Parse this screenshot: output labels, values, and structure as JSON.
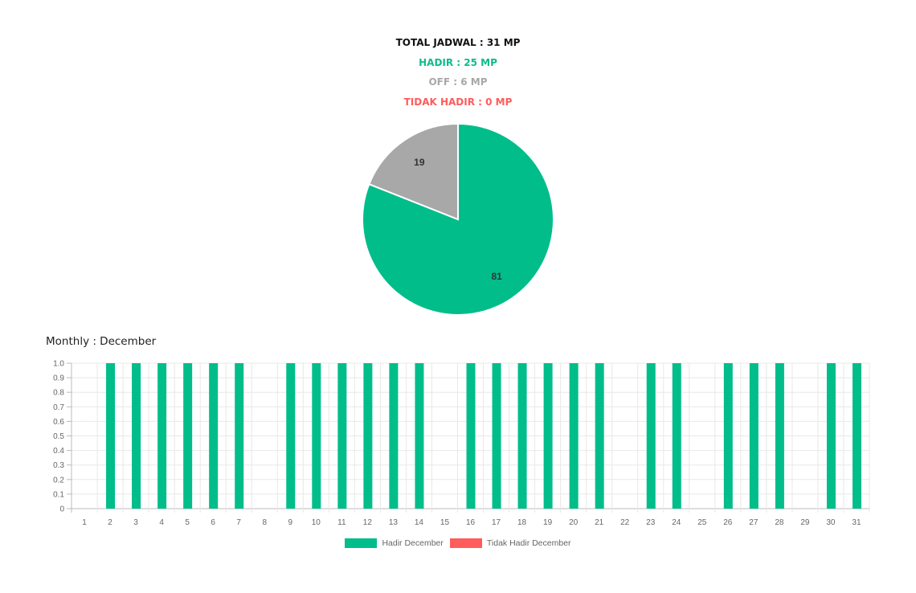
{
  "summary": {
    "total": "TOTAL JADWAL : 31 MP",
    "hadir": "HADIR : 25 MP",
    "off": "OFF : 6 MP",
    "tidak_hadir": "TIDAK HADIR : 0 MP"
  },
  "colors": {
    "total": "#111111",
    "hadir": "#0dbb8b",
    "off": "#a8a8a8",
    "tidak_hadir": "#ff5c5c"
  },
  "monthly_title": "Monthly : December",
  "chart_data": [
    {
      "type": "pie",
      "slices": [
        {
          "label": "81",
          "value": 81,
          "color": "#00bd8a"
        },
        {
          "label": "19",
          "value": 19,
          "color": "#a8a8a8"
        }
      ],
      "start": "12 o'clock",
      "direction": "clockwise"
    },
    {
      "type": "bar",
      "categories": [
        "1",
        "2",
        "3",
        "4",
        "5",
        "6",
        "7",
        "8",
        "9",
        "10",
        "11",
        "12",
        "13",
        "14",
        "15",
        "16",
        "17",
        "18",
        "19",
        "20",
        "21",
        "22",
        "23",
        "24",
        "25",
        "26",
        "27",
        "28",
        "29",
        "30",
        "31"
      ],
      "series": [
        {
          "name": "Hadir December",
          "color": "#00bd8a",
          "values": [
            0,
            1,
            1,
            1,
            1,
            1,
            1,
            0,
            1,
            1,
            1,
            1,
            1,
            1,
            0,
            1,
            1,
            1,
            1,
            1,
            1,
            0,
            1,
            1,
            0,
            1,
            1,
            1,
            0,
            1,
            1
          ]
        },
        {
          "name": "Tidak Hadir December",
          "color": "#ff5c5c",
          "values": [
            0,
            0,
            0,
            0,
            0,
            0,
            0,
            0,
            0,
            0,
            0,
            0,
            0,
            0,
            0,
            0,
            0,
            0,
            0,
            0,
            0,
            0,
            0,
            0,
            0,
            0,
            0,
            0,
            0,
            0,
            0
          ]
        }
      ],
      "yticks": [
        "1.0",
        "0.9",
        "0.8",
        "0.7",
        "0.6",
        "0.5",
        "0.4",
        "0.3",
        "0.2",
        "0.1",
        "0"
      ],
      "ylim": [
        0,
        1
      ],
      "grid": true,
      "legend": "bottom-center"
    }
  ]
}
